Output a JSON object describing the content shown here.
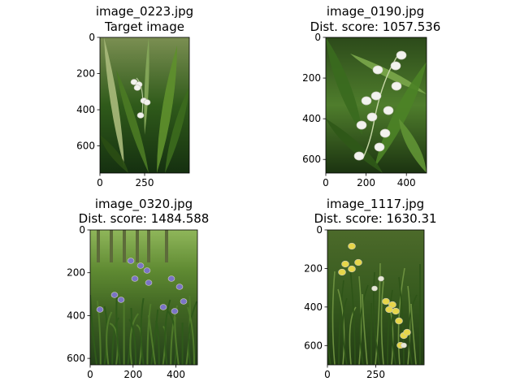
{
  "chart_data": [
    {
      "type": "image",
      "title_lines": [
        "image_0223.jpg",
        "Target image"
      ],
      "xticks": [
        0,
        250
      ],
      "yticks": [
        0,
        200,
        400,
        600
      ],
      "xlim": [
        0,
        500
      ],
      "ylim": [
        0,
        750
      ],
      "scene": "lily-closeup"
    },
    {
      "type": "image",
      "title_lines": [
        "image_0190.jpg",
        "Dist. score: 1057.536"
      ],
      "xticks": [
        0,
        200,
        400
      ],
      "yticks": [
        0,
        200,
        400,
        600
      ],
      "xlim": [
        0,
        500
      ],
      "ylim": [
        0,
        667
      ],
      "scene": "lily-bells"
    },
    {
      "type": "image",
      "title_lines": [
        "image_0320.jpg",
        "Dist. score: 1484.588"
      ],
      "xticks": [
        0,
        200,
        400
      ],
      "yticks": [
        0,
        200,
        400,
        600
      ],
      "xlim": [
        0,
        500
      ],
      "ylim": [
        0,
        630
      ],
      "scene": "bluebells"
    },
    {
      "type": "image",
      "title_lines": [
        "image_1117.jpg",
        "Dist. score: 1630.31"
      ],
      "xticks": [
        0,
        250
      ],
      "yticks": [
        0,
        200,
        400,
        600
      ],
      "xlim": [
        0,
        500
      ],
      "ylim": [
        0,
        700
      ],
      "scene": "cowslips"
    }
  ],
  "colors": {
    "frame": "#000000",
    "leaf_dark": "#1f3d12",
    "leaf_light": "#6f9a3a",
    "petal_white": "#f2f2ee",
    "bluebell": "#7b74c6",
    "cowslip": "#e6d64a"
  }
}
